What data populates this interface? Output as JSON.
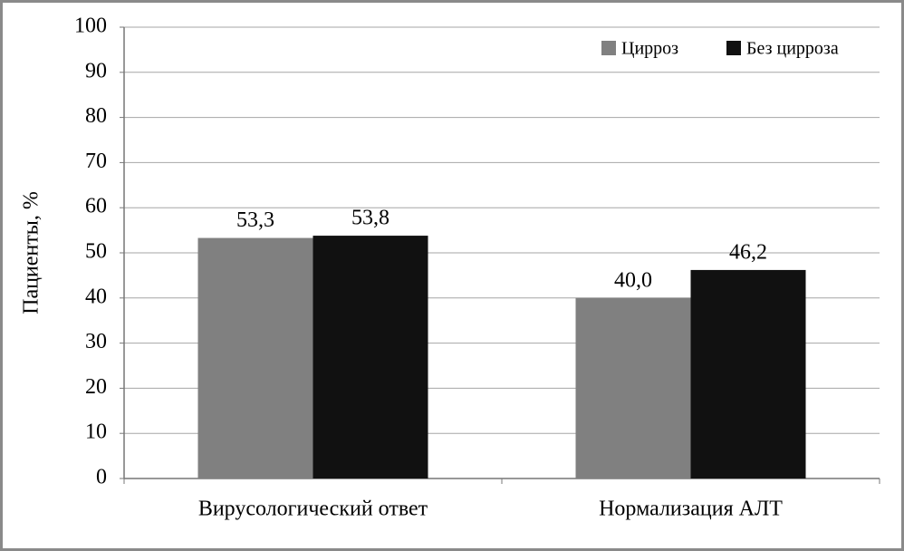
{
  "chart_data": {
    "type": "bar",
    "y_label": "Пациенты, %",
    "categories": [
      "Вирусологический ответ",
      "Нормализация АЛТ"
    ],
    "series": [
      {
        "name": "Цирроз",
        "color": "#808080",
        "values": [
          53.3,
          40.0
        ],
        "value_labels": [
          "53,3",
          "40,0"
        ]
      },
      {
        "name": "Без цирроза",
        "color": "#111111",
        "values": [
          53.8,
          46.2
        ],
        "value_labels": [
          "53,8",
          "46,2"
        ]
      }
    ],
    "ylim": [
      0,
      100
    ],
    "yticks": [
      0,
      10,
      20,
      30,
      40,
      50,
      60,
      70,
      80,
      90,
      100
    ],
    "grid": true,
    "legend": "top-right"
  }
}
